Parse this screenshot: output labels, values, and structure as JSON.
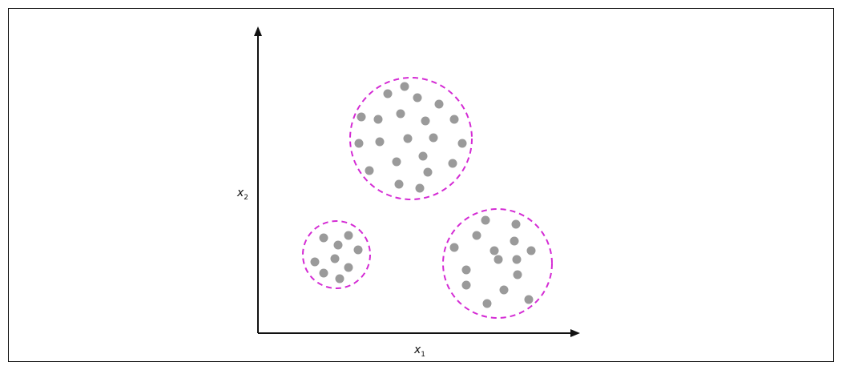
{
  "diagram": {
    "title": "",
    "x_axis": {
      "label": "x",
      "subscript": "1"
    },
    "y_axis": {
      "label": "x",
      "subscript": "2"
    },
    "colors": {
      "axis": "#111111",
      "point": "#9a9a9a",
      "cluster_outline": "#d42bd4",
      "frame": "#111111"
    }
  }
}
